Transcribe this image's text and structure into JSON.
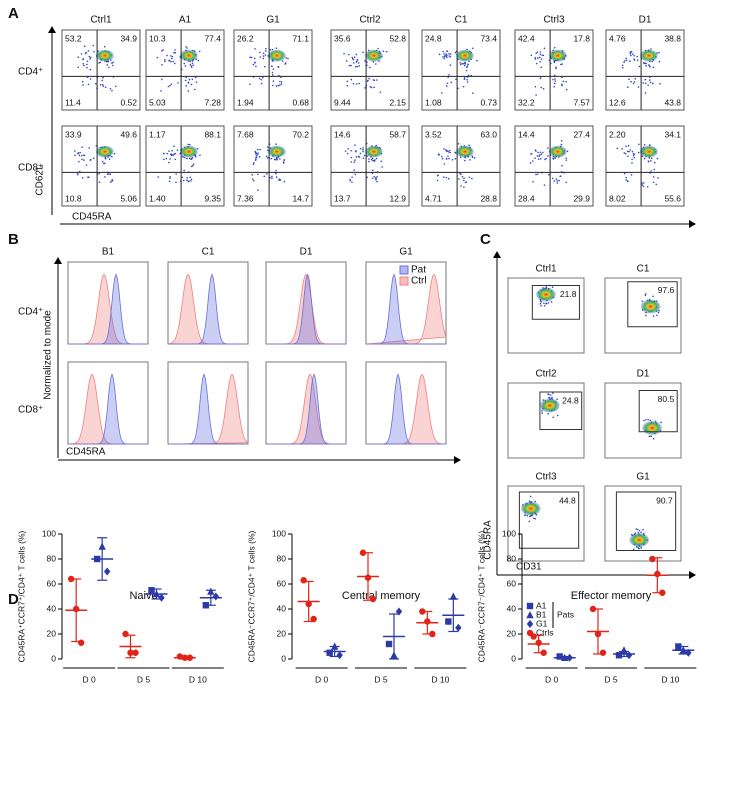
{
  "panels": {
    "A": {
      "label": "A",
      "columns": [
        "Ctrl1",
        "A1",
        "G1",
        "Ctrl2",
        "C1",
        "Ctrl3",
        "D1"
      ],
      "rows": [
        "CD4⁺",
        "CD8⁺"
      ],
      "y_axis": "CD62L",
      "x_axis": "CD45RA",
      "quadrants": [
        [
          [
            "53.2",
            "34.9",
            "11.4",
            "0.52"
          ],
          [
            "10.3",
            "77.4",
            "5.03",
            "7.28"
          ],
          [
            "26.2",
            "71.1",
            "1.94",
            "0.68"
          ],
          [
            "35.6",
            "52.8",
            "9.44",
            "2.15"
          ],
          [
            "24.8",
            "73.4",
            "1.08",
            "0.73"
          ],
          [
            "42.4",
            "17.8",
            "32.2",
            "7.57"
          ],
          [
            "4.76",
            "38.8",
            "12.6",
            "43.8"
          ]
        ],
        [
          [
            "33.9",
            "49.6",
            "10.8",
            "5.06"
          ],
          [
            "1.17",
            "88.1",
            "1.40",
            "9.35"
          ],
          [
            "7.68",
            "70.2",
            "7.36",
            "14.7"
          ],
          [
            "14.6",
            "58.7",
            "13.7",
            "12.9"
          ],
          [
            "3.52",
            "63.0",
            "4.71",
            "28.8"
          ],
          [
            "14.4",
            "27.4",
            "28.4",
            "29.9"
          ],
          [
            "2.20",
            "34.1",
            "8.02",
            "55.6"
          ]
        ]
      ]
    },
    "B": {
      "label": "B",
      "columns": [
        "B1",
        "C1",
        "D1",
        "G1"
      ],
      "rows": [
        "CD4⁺",
        "CD8⁺"
      ],
      "y_axis": "Normalized to mode",
      "x_axis": "CD45RA",
      "legend": [
        "Pat",
        "Ctrl"
      ]
    },
    "C": {
      "label": "C",
      "plots": [
        {
          "title": "Ctrl1",
          "gate": "21.8"
        },
        {
          "title": "C1",
          "gate": "97.6"
        },
        {
          "title": "Ctrl2",
          "gate": "24.8"
        },
        {
          "title": "D1",
          "gate": "80.5"
        },
        {
          "title": "Ctrl3",
          "gate": "44.8"
        },
        {
          "title": "G1",
          "gate": "90.7"
        }
      ],
      "y_axis": "CD45RA",
      "x_axis": "CD31"
    },
    "D": {
      "label": "D"
    }
  },
  "chart_data": [
    {
      "type": "scatter",
      "title": "Naive",
      "y_label": "CD45RA⁺CCR7⁺/CD4⁺ T cells (%)",
      "categories": [
        "D 0",
        "D 5",
        "D 10"
      ],
      "ylim": [
        0,
        100
      ],
      "yticks": [
        0,
        20,
        40,
        60,
        80,
        100
      ],
      "series": [
        {
          "color": "#2b3aa6",
          "marker": "square",
          "values": [
            80,
            55,
            43
          ]
        },
        {
          "color": "#2b3aa6",
          "marker": "triangle",
          "values": [
            90,
            52,
            54
          ]
        },
        {
          "color": "#2b3aa6",
          "marker": "diamond",
          "values": [
            70,
            49,
            50
          ]
        },
        {
          "color": "#e2231a",
          "marker": "circle",
          "values": [
            [
              64,
              40,
              13
            ],
            [
              20,
              5,
              5
            ],
            [
              2,
              1,
              1
            ]
          ]
        }
      ],
      "summary": [
        {
          "color": "#e2231a",
          "mean": [
            39,
            10,
            1
          ],
          "sd": [
            25,
            9,
            1
          ]
        },
        {
          "color": "#2b3aa6",
          "mean": [
            80,
            52,
            49
          ],
          "sd": [
            17,
            4,
            6
          ]
        }
      ]
    },
    {
      "type": "scatter",
      "title": "Central memory",
      "y_label": "CD45RA⁻CCR7⁺/CD4⁺ T cells (%)",
      "categories": [
        "D 0",
        "D 5",
        "D 10"
      ],
      "ylim": [
        0,
        100
      ],
      "yticks": [
        0,
        20,
        40,
        60,
        80,
        100
      ],
      "series": [
        {
          "color": "#2b3aa6",
          "marker": "square",
          "values": [
            5,
            12,
            30
          ]
        },
        {
          "color": "#2b3aa6",
          "marker": "triangle",
          "values": [
            10,
            3,
            50
          ]
        },
        {
          "color": "#2b3aa6",
          "marker": "diamond",
          "values": [
            3,
            38,
            25
          ]
        },
        {
          "color": "#e2231a",
          "marker": "circle",
          "values": [
            [
              63,
              44,
              32
            ],
            [
              85,
              65,
              48
            ],
            [
              38,
              30,
              20
            ]
          ]
        }
      ],
      "summary": [
        {
          "color": "#e2231a",
          "mean": [
            46,
            66,
            29
          ],
          "sd": [
            16,
            19,
            9
          ]
        },
        {
          "color": "#2b3aa6",
          "mean": [
            6,
            18,
            35
          ],
          "sd": [
            4,
            18,
            13
          ]
        }
      ]
    },
    {
      "type": "scatter",
      "title": "Effector memory",
      "y_label": "CD45RA⁻CCR7⁻/CD4⁺ T cells (%)",
      "categories": [
        "D 0",
        "D 5",
        "D 10"
      ],
      "ylim": [
        0,
        100
      ],
      "yticks": [
        0,
        20,
        40,
        60,
        80,
        100
      ],
      "legend_group": "Pats",
      "series": [
        {
          "name": "A1",
          "color": "#2b3aa6",
          "marker": "square",
          "values": [
            2,
            3,
            10
          ]
        },
        {
          "name": "B1",
          "color": "#2b3aa6",
          "marker": "triangle",
          "values": [
            1,
            7,
            7
          ]
        },
        {
          "name": "G1",
          "color": "#2b3aa6",
          "marker": "diamond",
          "values": [
            1,
            3,
            5
          ]
        },
        {
          "name": "Ctrls",
          "color": "#e2231a",
          "marker": "circle",
          "values": [
            [
              18,
              13,
              5
            ],
            [
              40,
              20,
              5
            ],
            [
              80,
              68,
              53
            ]
          ]
        }
      ],
      "summary": [
        {
          "color": "#e2231a",
          "mean": [
            12,
            22,
            67
          ],
          "sd": [
            7,
            18,
            14
          ]
        },
        {
          "color": "#2b3aa6",
          "mean": [
            1,
            4,
            7
          ],
          "sd": [
            1,
            2,
            3
          ]
        }
      ]
    }
  ]
}
